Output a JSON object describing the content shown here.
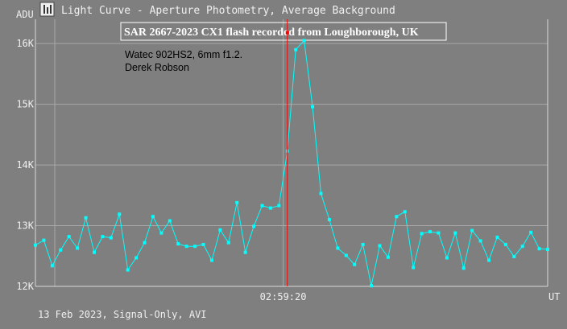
{
  "window": {
    "title": "Light Curve - Aperture Photometry, Average Background",
    "icon": "light-curve-app-icon"
  },
  "footer": {
    "caption": "13 Feb 2023, Signal-Only, AVI"
  },
  "colors": {
    "background": "#7f7f7f",
    "grid": "#a8a8a8",
    "axis": "#d8d8d8",
    "text": "#f0f0f0",
    "series": "#00ffff",
    "marker_line": "#ff0000",
    "annotation_text": "#000000"
  },
  "chart_data": {
    "type": "line",
    "title": "SAR 2667-2023 CX1 flash recorded from Loughborough, UK",
    "annotation": [
      "Watec 902HS2, 6mm f1.2.",
      "Derek Robson"
    ],
    "ylabel": "ADU",
    "xlabel": "UT",
    "ylim": [
      12000,
      16400
    ],
    "yticks": [
      12000,
      13000,
      14000,
      15000,
      16000
    ],
    "ytick_labels": [
      "12K",
      "13K",
      "14K",
      "15K",
      "16K"
    ],
    "xtick_labels": [
      "02:59:20"
    ],
    "xtick_index": 29.5,
    "grid": true,
    "marker_frame_index": 30,
    "marker_point": 16180,
    "series": [
      {
        "values": [
          12680,
          12760,
          12340,
          12600,
          12820,
          12630,
          13130,
          12560,
          12820,
          12800,
          13190,
          12270,
          12470,
          12720,
          13150,
          12880,
          13080,
          12700,
          12660,
          12660,
          12690,
          12430,
          12930,
          12720,
          13380,
          12560,
          12990,
          13330,
          13290,
          13330,
          14230,
          15900,
          16050,
          14960,
          13530,
          13100,
          12630,
          12510,
          12360,
          12690,
          12010,
          12670,
          12480,
          13150,
          13230,
          12310,
          12870,
          12900,
          12880,
          12470,
          12880,
          12300,
          12920,
          12750,
          12430,
          12810,
          12690,
          12490,
          12660,
          12890,
          12620,
          12610
        ]
      }
    ]
  }
}
